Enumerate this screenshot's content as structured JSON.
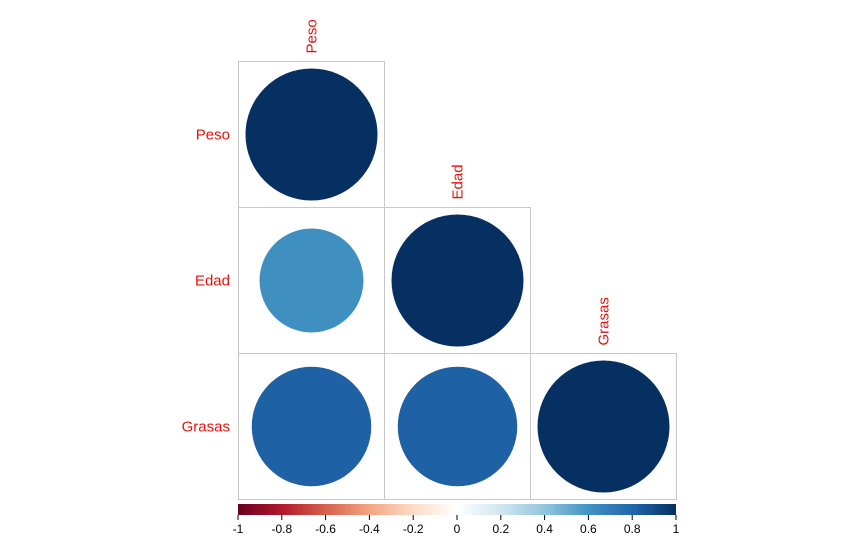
{
  "chart_data": {
    "type": "heatmap",
    "title": "",
    "variables": [
      "Peso",
      "Edad",
      "Grasas"
    ],
    "matrix_shape": "lower-triangular",
    "method": "circle",
    "values": [
      {
        "row": "Peso",
        "col": "Peso",
        "value": 1.0
      },
      {
        "row": "Edad",
        "col": "Peso",
        "value": 0.62
      },
      {
        "row": "Edad",
        "col": "Edad",
        "value": 1.0
      },
      {
        "row": "Grasas",
        "col": "Peso",
        "value": 0.82
      },
      {
        "row": "Grasas",
        "col": "Edad",
        "value": 0.82
      },
      {
        "row": "Grasas",
        "col": "Grasas",
        "value": 1.0
      }
    ],
    "colorbar": {
      "range": [
        -1,
        1
      ],
      "tick_labels": [
        "-1",
        "-0.8",
        "-0.6",
        "-0.4",
        "-0.2",
        "0",
        "0.2",
        "0.4",
        "0.6",
        "0.8",
        "1"
      ]
    },
    "label_color": "#e8120c",
    "grid": true
  }
}
